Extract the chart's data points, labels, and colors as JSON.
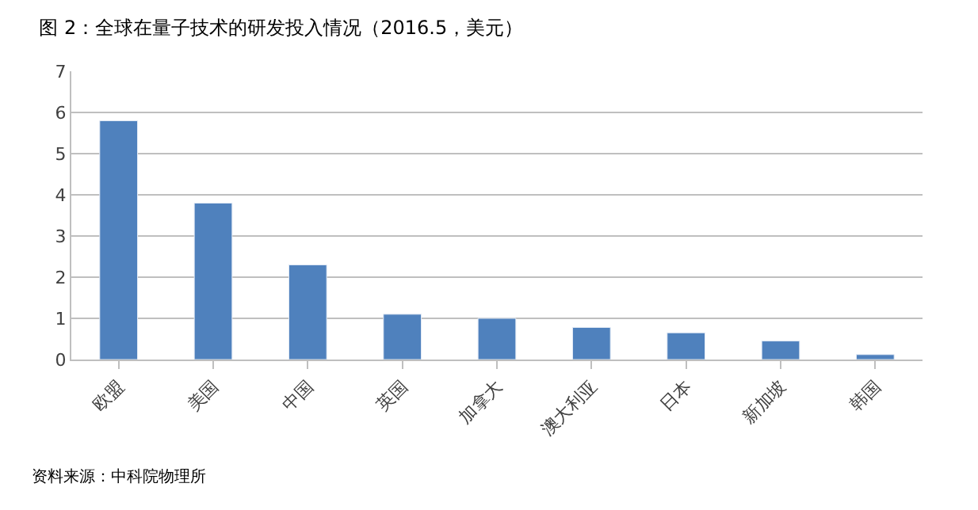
{
  "chart_data": {
    "type": "bar",
    "title": "图 2：全球在量子技术的研发投入情况（2016.5，美元）",
    "categories": [
      "欧盟",
      "美国",
      "中国",
      "英国",
      "加拿大",
      "澳大利亚",
      "日本",
      "新加坡",
      "韩国"
    ],
    "values": [
      5.8,
      3.8,
      2.3,
      1.1,
      1.0,
      0.78,
      0.65,
      0.45,
      0.12
    ],
    "color": "#4f81bd",
    "ylim": [
      0,
      7
    ],
    "yticks": [
      0,
      1,
      2,
      3,
      4,
      5,
      6,
      7
    ],
    "grid": "y",
    "annotations": [
      "资料来源：中科院物理所"
    ]
  }
}
